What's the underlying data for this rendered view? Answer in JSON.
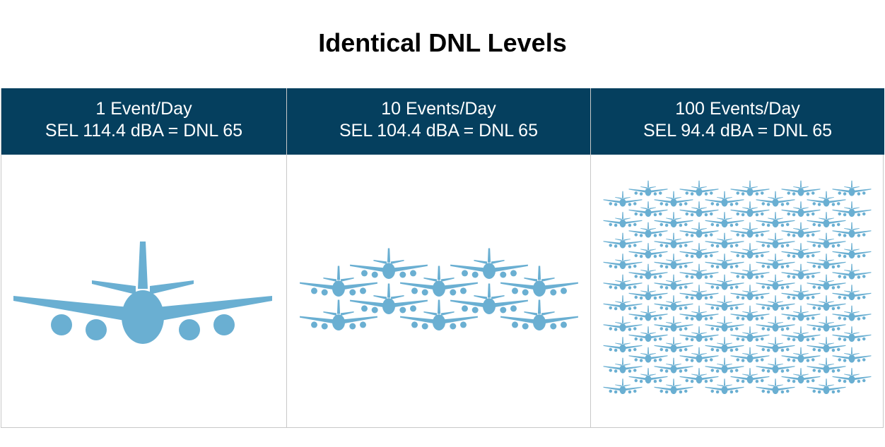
{
  "title": "Identical DNL Levels",
  "columns": [
    {
      "events": "1 Event/Day",
      "level": "SEL 114.4 dBA = DNL 65",
      "plane_count": 1
    },
    {
      "events": "10 Events/Day",
      "level": "SEL 104.4 dBA = DNL 65",
      "plane_count": 10
    },
    {
      "events": "100 Events/Day",
      "level": "SEL 94.4 dBA = DNL 65",
      "plane_count": 100
    }
  ],
  "colors": {
    "header": "#053f5e",
    "plane": "#6aafd2",
    "border": "#c8c8c8"
  },
  "icon": "airplane-front-icon"
}
